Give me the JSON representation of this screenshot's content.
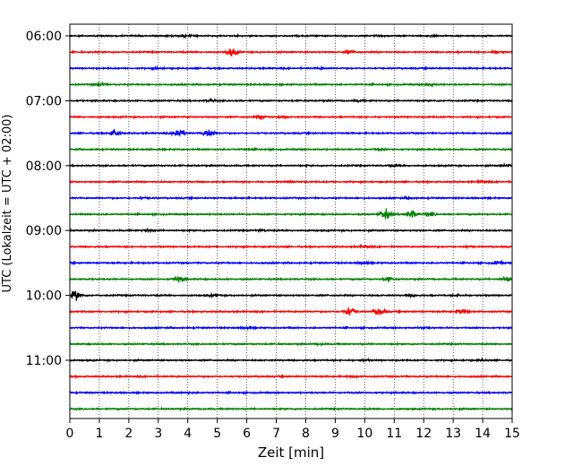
{
  "chart_data": {
    "type": "line",
    "title": "",
    "xlabel": "Zeit  [min]",
    "ylabel": "UTC (Lokalzeit = UTC + 02:00)",
    "xlim": [
      0,
      15
    ],
    "x_ticks": [
      0,
      1,
      2,
      3,
      4,
      5,
      6,
      7,
      8,
      9,
      10,
      11,
      12,
      13,
      14,
      15
    ],
    "x_tick_labels": [
      "0",
      "1",
      "2",
      "3",
      "4",
      "5",
      "6",
      "7",
      "8",
      "9",
      "10",
      "11",
      "12",
      "13",
      "14",
      "15"
    ],
    "y_tick_labels": [
      "06:00",
      "07:00",
      "08:00",
      "09:00",
      "10:00",
      "11:00"
    ],
    "y_tick_rows": [
      0,
      4,
      8,
      12,
      16,
      20
    ],
    "traces_per_hour": 4,
    "trace_colors": [
      "#000000",
      "#ff0000",
      "#0000ff",
      "#008000"
    ],
    "grid": true,
    "grid_axis": "x",
    "series": [
      {
        "row": 0,
        "label": "06:00",
        "events": [
          [
            3.9,
            0.6
          ],
          [
            12.3,
            0.5
          ]
        ]
      },
      {
        "row": 1,
        "label": "06:15",
        "events": [
          [
            5.5,
            3.0
          ],
          [
            9.5,
            1.2
          ],
          [
            14.5,
            1.0
          ]
        ]
      },
      {
        "row": 2,
        "label": "06:30",
        "events": [
          [
            3.0,
            0.5
          ],
          [
            8.5,
            0.4
          ]
        ]
      },
      {
        "row": 3,
        "label": "06:45",
        "events": [
          [
            1.0,
            1.2
          ],
          [
            12.2,
            0.8
          ]
        ]
      },
      {
        "row": 4,
        "label": "07:00",
        "events": [
          [
            4.8,
            0.6
          ],
          [
            9.8,
            0.4
          ]
        ]
      },
      {
        "row": 5,
        "label": "07:15",
        "events": [
          [
            6.5,
            1.2
          ],
          [
            7.2,
            0.8
          ]
        ]
      },
      {
        "row": 6,
        "label": "07:30",
        "events": [
          [
            1.5,
            2.0
          ],
          [
            3.7,
            3.5
          ],
          [
            4.7,
            3.0
          ]
        ]
      },
      {
        "row": 7,
        "label": "07:45",
        "events": [
          [
            6.0,
            0.4
          ],
          [
            10.5,
            0.4
          ]
        ]
      },
      {
        "row": 8,
        "label": "08:00",
        "events": [
          [
            11.0,
            0.8
          ],
          [
            14.8,
            0.6
          ]
        ]
      },
      {
        "row": 9,
        "label": "08:15",
        "events": [
          [
            7.5,
            0.4
          ],
          [
            14.0,
            0.5
          ]
        ]
      },
      {
        "row": 10,
        "label": "08:30",
        "events": [
          [
            2.5,
            0.4
          ],
          [
            11.5,
            0.4
          ]
        ]
      },
      {
        "row": 11,
        "label": "08:45",
        "events": [
          [
            10.7,
            3.8
          ],
          [
            11.6,
            3.0
          ],
          [
            12.2,
            1.2
          ]
        ]
      },
      {
        "row": 12,
        "label": "09:00",
        "events": [
          [
            2.7,
            0.8
          ],
          [
            6.5,
            0.5
          ]
        ]
      },
      {
        "row": 13,
        "label": "09:15",
        "events": [
          [
            10.0,
            0.6
          ],
          [
            13.5,
            0.4
          ]
        ]
      },
      {
        "row": 14,
        "label": "09:30",
        "events": [
          [
            10.0,
            0.8
          ],
          [
            14.5,
            0.8
          ]
        ]
      },
      {
        "row": 15,
        "label": "09:45",
        "events": [
          [
            3.7,
            2.2
          ],
          [
            10.8,
            1.6
          ],
          [
            14.8,
            1.8
          ]
        ]
      },
      {
        "row": 16,
        "label": "10:00",
        "events": [
          [
            0.2,
            3.2
          ],
          [
            4.9,
            0.8
          ],
          [
            11.6,
            0.6
          ],
          [
            13.2,
            0.6
          ]
        ]
      },
      {
        "row": 17,
        "label": "10:15",
        "events": [
          [
            9.5,
            3.5
          ],
          [
            10.5,
            2.5
          ],
          [
            13.3,
            2.0
          ]
        ]
      },
      {
        "row": 18,
        "label": "10:30",
        "events": [
          [
            6.0,
            0.5
          ],
          [
            12.0,
            0.4
          ]
        ]
      },
      {
        "row": 19,
        "label": "10:45",
        "events": [
          [
            8.5,
            0.4
          ]
        ]
      },
      {
        "row": 20,
        "label": "11:00",
        "events": [
          [
            10.0,
            0.4
          ],
          [
            14.0,
            0.4
          ]
        ]
      },
      {
        "row": 21,
        "label": "11:15",
        "events": [
          [
            9.6,
            0.5
          ]
        ]
      },
      {
        "row": 22,
        "label": "11:30",
        "events": [
          [
            4.0,
            0.4
          ]
        ]
      },
      {
        "row": 23,
        "label": "11:45",
        "events": []
      }
    ]
  }
}
